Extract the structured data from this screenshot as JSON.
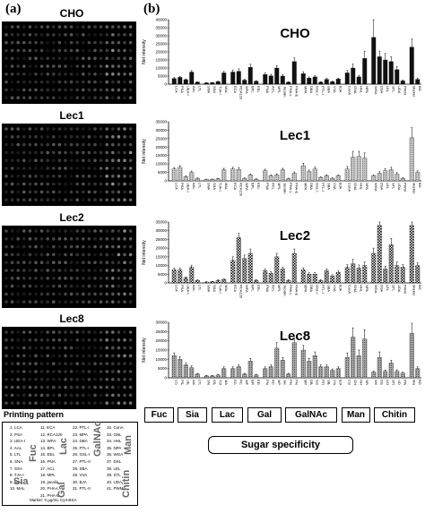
{
  "panel_labels": {
    "a": "(a)",
    "b": "(b)"
  },
  "array_titles": [
    "CHO",
    "Lec1",
    "Lec2",
    "Lec8"
  ],
  "printing_pattern": {
    "title": "Printing pattern",
    "entries": [
      "1. LCA",
      "2. PSA",
      "3. UEA-I",
      "4. AAL",
      "5. LTL",
      "6. SNA",
      "7. SSA",
      "8. TJA-I",
      "9. MAL",
      "10. MAL",
      "11. ECA",
      "12. RCA120",
      "13. WFA",
      "14. BPL",
      "15. EEL",
      "16. PNA",
      "17. ACL",
      "18. MPL",
      "19. jacalin",
      "20. PHA-L",
      "21. PHA-E",
      "22. PTL-I",
      "23. MPA",
      "24. DBA",
      "25. PTL-I",
      "26. GSL-I",
      "27. PTL-II",
      "28. SBA",
      "29. VVA",
      "30. BJA",
      "31. PTL-II",
      "32. ConA",
      "33. GNL",
      "34. HHL",
      "35. NPA",
      "36. WGA",
      "37. DSL",
      "38. LEL",
      "39. STL",
      "40. UDA",
      "41. PWM"
    ],
    "groups": [
      "Fuc",
      "Sia",
      "Lac",
      "Gal",
      "GalNAc",
      "Man",
      "Chitin"
    ],
    "marker": "Marker: 0 µg/mL Cy3-BSA"
  },
  "categories_legend": [
    "Fuc",
    "Sia",
    "Lac",
    "Gal",
    "GalNAc",
    "Man",
    "Chitin"
  ],
  "xlabel": "Sugar specificity",
  "ylabel": "Net intensity",
  "chart_data": [
    {
      "type": "bar",
      "title": "CHO",
      "ylim": [
        0,
        40000
      ],
      "ticks": [
        "40000",
        "35000",
        "30000",
        "25000",
        "20000",
        "15000",
        "10000",
        "5000",
        "0"
      ],
      "categories": [
        "LCA",
        "PSA",
        "UEA-I",
        "AAL",
        "LTL",
        "SNA",
        "SSA",
        "TJA-I",
        "MAL",
        "ECA",
        "RCA120",
        "WFA",
        "BPL",
        "EEL",
        "PNA",
        "ACL",
        "MPL",
        "Jacalin",
        "PHA-L",
        "PHA-E",
        "MPA",
        "DBA",
        "GSL-I",
        "PTL-I",
        "SBA",
        "VVA",
        "BJA",
        "ConA",
        "GNA",
        "HHL",
        "NPA",
        "WGA",
        "DSA",
        "LEL",
        "STL",
        "UDA",
        "PWM",
        "Marker",
        "BG"
      ],
      "values": [
        3500,
        4200,
        2800,
        7500,
        1200,
        800,
        900,
        1600,
        7000,
        7500,
        8000,
        2500,
        10500,
        1800,
        6000,
        5200,
        10000,
        5000,
        1200,
        14000,
        6500,
        3800,
        4500,
        1200,
        3000,
        1500,
        3200,
        7000,
        10000,
        4500,
        16000,
        29000,
        17000,
        15000,
        14000,
        9000,
        2000,
        23000,
        3000
      ],
      "errors": [
        600,
        700,
        500,
        900,
        300,
        200,
        200,
        300,
        1000,
        1200,
        1500,
        500,
        1800,
        400,
        1000,
        900,
        1500,
        900,
        300,
        2200,
        1200,
        700,
        800,
        300,
        600,
        400,
        600,
        1500,
        2500,
        1000,
        4500,
        12000,
        3500,
        4000,
        3000,
        2000,
        500,
        5000,
        600
      ],
      "pattern": "black"
    },
    {
      "type": "bar",
      "title": "Lec1",
      "ylim": [
        0,
        35000
      ],
      "ticks": [
        "35000",
        "30000",
        "25000",
        "20000",
        "15000",
        "10000",
        "5000",
        "0"
      ],
      "categories": [
        "LCA",
        "PSA",
        "UEA-I",
        "AAL",
        "LTL",
        "SNA",
        "SSA",
        "TJA-I",
        "MAL",
        "ECA",
        "RCA120",
        "WFA",
        "BPL",
        "EEL",
        "PNA",
        "ACL",
        "MPL",
        "Jacalin",
        "PHA-L",
        "PHA-E",
        "MPA",
        "DBA",
        "GSL-I",
        "PTL-I",
        "SBA",
        "VVA",
        "BJA",
        "ConA",
        "GNA",
        "HHL",
        "NPA",
        "WGA",
        "DSA",
        "LEL",
        "STL",
        "UDA",
        "PWM",
        "Marker",
        "BG"
      ],
      "values": [
        7000,
        8000,
        2500,
        5000,
        1500,
        800,
        900,
        1200,
        6500,
        7000,
        6800,
        1500,
        3500,
        1000,
        6000,
        3000,
        3500,
        6500,
        1300,
        4500,
        9000,
        5500,
        7000,
        2000,
        3000,
        1500,
        3000,
        7000,
        14000,
        14500,
        13500,
        3000,
        4500,
        6000,
        6500,
        4000,
        1500,
        25500,
        5000
      ],
      "errors": [
        900,
        1000,
        500,
        800,
        300,
        200,
        200,
        300,
        900,
        1000,
        1000,
        300,
        600,
        300,
        900,
        600,
        700,
        900,
        300,
        800,
        1500,
        900,
        1200,
        400,
        600,
        400,
        600,
        1500,
        3500,
        3000,
        3000,
        600,
        900,
        1200,
        1500,
        900,
        400,
        6000,
        900
      ],
      "pattern": "lightgray"
    },
    {
      "type": "bar",
      "title": "Lec2",
      "ylim": [
        0,
        35000
      ],
      "ticks": [
        "35000",
        "30000",
        "25000",
        "20000",
        "15000",
        "10000",
        "5000",
        "0"
      ],
      "categories": [
        "LCA",
        "PSA",
        "UEA-I",
        "AAL",
        "LTL",
        "SNA",
        "SSA",
        "TJA-I",
        "MAL",
        "ECA",
        "RCA120",
        "WFA",
        "BPL",
        "EEL",
        "PNA",
        "ACL",
        "MPL",
        "Jacalin",
        "PHA-L",
        "PHA-E",
        "MPA",
        "DBA",
        "GSL-I",
        "PTL-I",
        "SBA",
        "VVA",
        "BJA",
        "ConA",
        "GNA",
        "HHL",
        "NPA",
        "WGA",
        "DSA",
        "LEL",
        "STL",
        "UDA",
        "PWM",
        "Marker",
        "BG"
      ],
      "values": [
        7500,
        7500,
        3000,
        9000,
        1500,
        500,
        700,
        1500,
        2000,
        13000,
        26000,
        14000,
        17000,
        1500,
        7000,
        5500,
        15000,
        8000,
        1500,
        17000,
        7500,
        5000,
        5000,
        1500,
        7000,
        4000,
        6000,
        9000,
        11000,
        8500,
        10000,
        17000,
        33000,
        8000,
        22000,
        10000,
        9000,
        33000,
        10000
      ],
      "errors": [
        1000,
        1000,
        500,
        1200,
        300,
        200,
        200,
        300,
        400,
        2000,
        2500,
        2000,
        2500,
        400,
        1000,
        900,
        2000,
        1200,
        300,
        2500,
        1200,
        800,
        800,
        300,
        1000,
        700,
        900,
        1500,
        2500,
        1800,
        2000,
        3000,
        3000,
        1500,
        3500,
        2000,
        1500,
        3000,
        1500
      ],
      "pattern": "checker"
    },
    {
      "type": "bar",
      "title": "Lec8",
      "ylim": [
        0,
        30000
      ],
      "ticks": [
        "30000",
        "25000",
        "20000",
        "15000",
        "10000",
        "5000",
        "0"
      ],
      "categories": [
        "LCA",
        "PSA",
        "UEA-I",
        "AAL",
        "LTL",
        "SNA",
        "SSA",
        "TJA-I",
        "MAL",
        "ECA",
        "RCA120",
        "WFA",
        "BPL",
        "EEL",
        "PNA",
        "ACL",
        "MPL",
        "Jacalin",
        "PHA-L",
        "PHA-E",
        "MPA",
        "DBA",
        "GSL-I",
        "PTL-I",
        "SBA",
        "VVA",
        "BJA",
        "ConA",
        "GNA",
        "HHL",
        "NPA",
        "WGA",
        "DSA",
        "LEL",
        "STL",
        "UDA",
        "PWM",
        "Marker",
        "BG"
      ],
      "values": [
        12000,
        10000,
        7000,
        5500,
        2000,
        1000,
        1000,
        1500,
        5000,
        5000,
        6000,
        2000,
        9000,
        1500,
        5000,
        6000,
        16000,
        9500,
        2000,
        19000,
        15000,
        9000,
        12000,
        6000,
        6000,
        4000,
        5000,
        11000,
        22000,
        12000,
        21000,
        3000,
        11000,
        3500,
        8000,
        3500,
        2500,
        24000,
        5000
      ],
      "errors": [
        1500,
        1500,
        1200,
        1000,
        400,
        300,
        300,
        400,
        900,
        900,
        1000,
        400,
        1500,
        400,
        900,
        1000,
        3000,
        1500,
        400,
        2500,
        2500,
        1500,
        2000,
        1000,
        1000,
        800,
        900,
        2500,
        5000,
        3000,
        5000,
        600,
        3000,
        800,
        1500,
        800,
        500,
        5500,
        900
      ],
      "pattern": "gray"
    }
  ]
}
